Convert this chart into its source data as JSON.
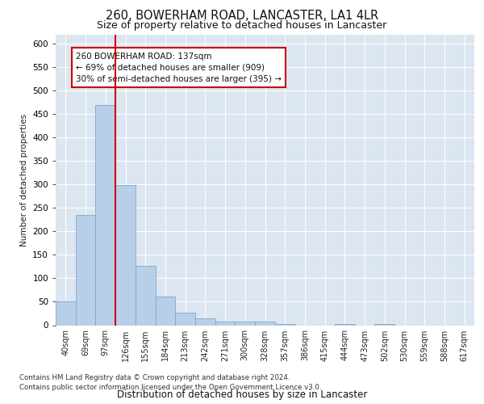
{
  "title1": "260, BOWERHAM ROAD, LANCASTER, LA1 4LR",
  "title2": "Size of property relative to detached houses in Lancaster",
  "xlabel": "Distribution of detached houses by size in Lancaster",
  "ylabel": "Number of detached properties",
  "categories": [
    "40sqm",
    "69sqm",
    "97sqm",
    "126sqm",
    "155sqm",
    "184sqm",
    "213sqm",
    "242sqm",
    "271sqm",
    "300sqm",
    "328sqm",
    "357sqm",
    "386sqm",
    "415sqm",
    "444sqm",
    "473sqm",
    "502sqm",
    "530sqm",
    "559sqm",
    "588sqm",
    "617sqm"
  ],
  "values": [
    50,
    235,
    470,
    298,
    127,
    62,
    27,
    14,
    8,
    8,
    8,
    3,
    0,
    0,
    3,
    0,
    3,
    0,
    0,
    0,
    0
  ],
  "bar_color": "#b8cfe8",
  "bar_edge_color": "#7ba7cc",
  "vline_color": "#cc0000",
  "vline_pos": 2.5,
  "annotation_text": "260 BOWERHAM ROAD: 137sqm\n← 69% of detached houses are smaller (909)\n30% of semi-detached houses are larger (395) →",
  "annotation_box_color": "#ffffff",
  "annotation_box_edge": "#cc0000",
  "ylim": [
    0,
    620
  ],
  "yticks": [
    0,
    50,
    100,
    150,
    200,
    250,
    300,
    350,
    400,
    450,
    500,
    550,
    600
  ],
  "footer1": "Contains HM Land Registry data © Crown copyright and database right 2024.",
  "footer2": "Contains public sector information licensed under the Open Government Licence v3.0.",
  "fig_bg_color": "#ffffff",
  "plot_bg_color": "#dce6f0"
}
